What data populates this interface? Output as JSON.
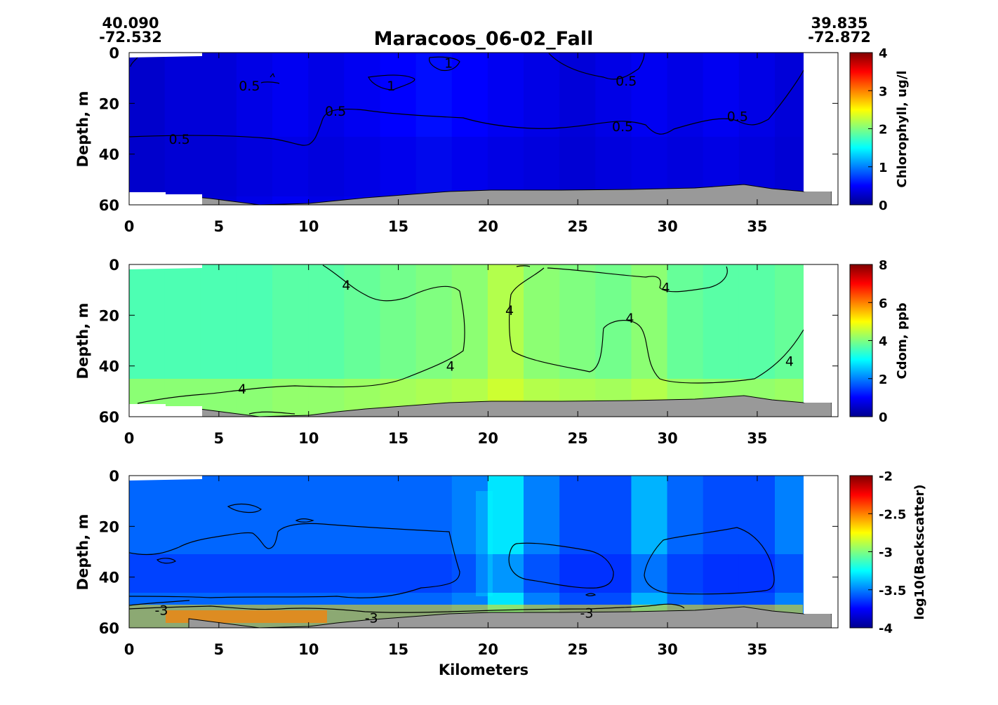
{
  "title": "Maracoos_06-02_Fall",
  "start_coords": {
    "lat": "40.090",
    "lon": "-72.532"
  },
  "end_coords": {
    "lat": "39.835",
    "lon": "-72.872"
  },
  "colors": {
    "bathymetry": "#999999",
    "contour": "#000000"
  },
  "chart_data": [
    {
      "type": "heatmap",
      "variable": "Chlorophyll",
      "colorbar_label": "Chlorophyll, ug/l",
      "ylabel": "Depth, m",
      "xlabel": "",
      "xlim": [
        0,
        39.5
      ],
      "ylim": [
        60,
        0
      ],
      "x_ticks": [
        "0",
        "5",
        "10",
        "15",
        "20",
        "25",
        "30",
        "35"
      ],
      "y_ticks": [
        "0",
        "20",
        "40",
        "60"
      ],
      "clim": [
        0,
        4
      ],
      "colorbar_ticks": [
        "0",
        "1",
        "2",
        "3",
        "4"
      ],
      "colormap": "jet",
      "grid": false,
      "fill_x": [
        0,
        2,
        4,
        6,
        8,
        10,
        12,
        14,
        16,
        18,
        20,
        22,
        24,
        26,
        28,
        30,
        32,
        34,
        36,
        38
      ],
      "fill_z": [
        0.3,
        0.35,
        0.35,
        0.4,
        0.45,
        0.4,
        0.45,
        0.5,
        0.55,
        0.5,
        0.45,
        0.4,
        0.35,
        0.4,
        0.45,
        0.4,
        0.45,
        0.4,
        0.35,
        0.3
      ],
      "contour_labels": [
        {
          "text": "0.5",
          "x": 6.7,
          "depth": 13
        },
        {
          "text": "1",
          "x": 14.6,
          "depth": 13
        },
        {
          "text": "1",
          "x": 17.8,
          "depth": 4
        },
        {
          "text": "0.5",
          "x": 27.7,
          "depth": 11
        },
        {
          "text": "0.5",
          "x": 11.5,
          "depth": 23
        },
        {
          "text": "0.5",
          "x": 27.5,
          "depth": 29
        },
        {
          "text": "0.5",
          "x": 33.9,
          "depth": 25
        },
        {
          "text": "0.5",
          "x": 2.8,
          "depth": 34
        }
      ]
    },
    {
      "type": "heatmap",
      "variable": "Cdom",
      "colorbar_label": "Cdom, ppb",
      "ylabel": "Depth, m",
      "xlabel": "",
      "xlim": [
        0,
        39.5
      ],
      "ylim": [
        60,
        0
      ],
      "x_ticks": [
        "0",
        "5",
        "10",
        "15",
        "20",
        "25",
        "30",
        "35"
      ],
      "y_ticks": [
        "0",
        "20",
        "40",
        "60"
      ],
      "clim": [
        0,
        8
      ],
      "colorbar_ticks": [
        "0",
        "2",
        "4",
        "6",
        "8"
      ],
      "colormap": "jet",
      "grid": false,
      "fill_x": [
        0,
        2,
        4,
        6,
        8,
        10,
        12,
        14,
        16,
        18,
        20,
        22,
        24,
        26,
        28,
        30,
        32,
        34,
        36,
        38
      ],
      "fill_z": [
        3.6,
        3.6,
        3.6,
        3.6,
        3.7,
        3.7,
        3.8,
        3.9,
        4.0,
        4.1,
        4.4,
        4.1,
        4.0,
        3.9,
        4.1,
        3.8,
        3.7,
        3.7,
        3.8,
        3.9
      ],
      "contour_labels": [
        {
          "text": "4",
          "x": 12.1,
          "depth": 8
        },
        {
          "text": "4",
          "x": 21.2,
          "depth": 18
        },
        {
          "text": "4",
          "x": 27.9,
          "depth": 21
        },
        {
          "text": "4",
          "x": 29.9,
          "depth": 9
        },
        {
          "text": "4",
          "x": 17.9,
          "depth": 40
        },
        {
          "text": "4",
          "x": 36.8,
          "depth": 38
        },
        {
          "text": "4",
          "x": 6.3,
          "depth": 49
        }
      ]
    },
    {
      "type": "heatmap",
      "variable": "Backscatter",
      "colorbar_label": "log10(Backscatter)",
      "ylabel": "Depth, m",
      "xlabel": "Kilometers",
      "xlim": [
        0,
        39.5
      ],
      "ylim": [
        60,
        0
      ],
      "x_ticks": [
        "0",
        "5",
        "10",
        "15",
        "20",
        "25",
        "30",
        "35"
      ],
      "y_ticks": [
        "0",
        "20",
        "40",
        "60"
      ],
      "clim": [
        -4,
        -2
      ],
      "colorbar_ticks": [
        "-4",
        "-3.5",
        "-3",
        "-2.5",
        "-2"
      ],
      "colormap": "jet",
      "grid": false,
      "fill_x": [
        0,
        2,
        4,
        6,
        8,
        10,
        12,
        14,
        16,
        18,
        20,
        22,
        24,
        26,
        28,
        30,
        32,
        34,
        36,
        38
      ],
      "fill_z": [
        -3.55,
        -3.55,
        -3.55,
        -3.55,
        -3.55,
        -3.55,
        -3.55,
        -3.55,
        -3.55,
        -3.5,
        -3.3,
        -3.5,
        -3.6,
        -3.6,
        -3.4,
        -3.55,
        -3.6,
        -3.6,
        -3.5,
        -3.5
      ],
      "contour_labels": [
        {
          "text": "-3",
          "x": 1.8,
          "depth": 53
        },
        {
          "text": "-3",
          "x": 13.5,
          "depth": 56
        },
        {
          "text": "-3",
          "x": 25.5,
          "depth": 54
        }
      ]
    }
  ]
}
